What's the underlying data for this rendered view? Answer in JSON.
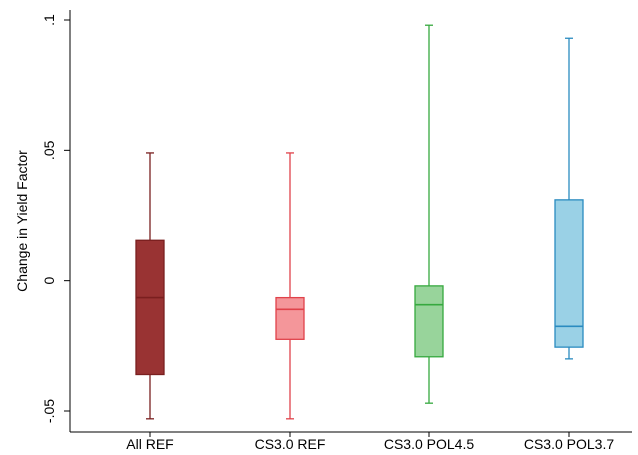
{
  "chart_data": {
    "type": "box",
    "title": "",
    "xlabel": "",
    "ylabel": "Change in Yield Factor",
    "ylim": [
      -0.052,
      0.1
    ],
    "y_ticks": [
      {
        "value": 0.1,
        "label": ".1"
      },
      {
        "value": 0.05,
        "label": ".05"
      },
      {
        "value": 0,
        "label": "0"
      },
      {
        "value": -0.05,
        "label": "-.05"
      }
    ],
    "grid": false,
    "legend": "none",
    "categories": [
      "All REF",
      "CS3.0 REF",
      "CS3.0 POL4.5",
      "CS3.0 POL3.7"
    ],
    "boxes": [
      {
        "category": "All REF",
        "whisker_low": -0.053,
        "q1": -0.036,
        "median": -0.0065,
        "q3": 0.0155,
        "whisker_high": 0.049,
        "fill": "#993333",
        "stroke": "#7a1f1f"
      },
      {
        "category": "CS3.0 REF",
        "whisker_low": -0.053,
        "q1": -0.0225,
        "median": -0.011,
        "q3": -0.0065,
        "whisker_high": 0.049,
        "fill": "#f4969a",
        "stroke": "#e0424a"
      },
      {
        "category": "CS3.0 POL4.5",
        "whisker_low": -0.047,
        "q1": -0.0292,
        "median": -0.0092,
        "q3": -0.002,
        "whisker_high": 0.098,
        "fill": "#98d49b",
        "stroke": "#36a93f"
      },
      {
        "category": "CS3.0 POL3.7",
        "whisker_low": -0.03,
        "q1": -0.0255,
        "median": -0.0175,
        "q3": 0.031,
        "whisker_high": 0.093,
        "fill": "#9ad1e6",
        "stroke": "#2a8bc0"
      }
    ]
  }
}
